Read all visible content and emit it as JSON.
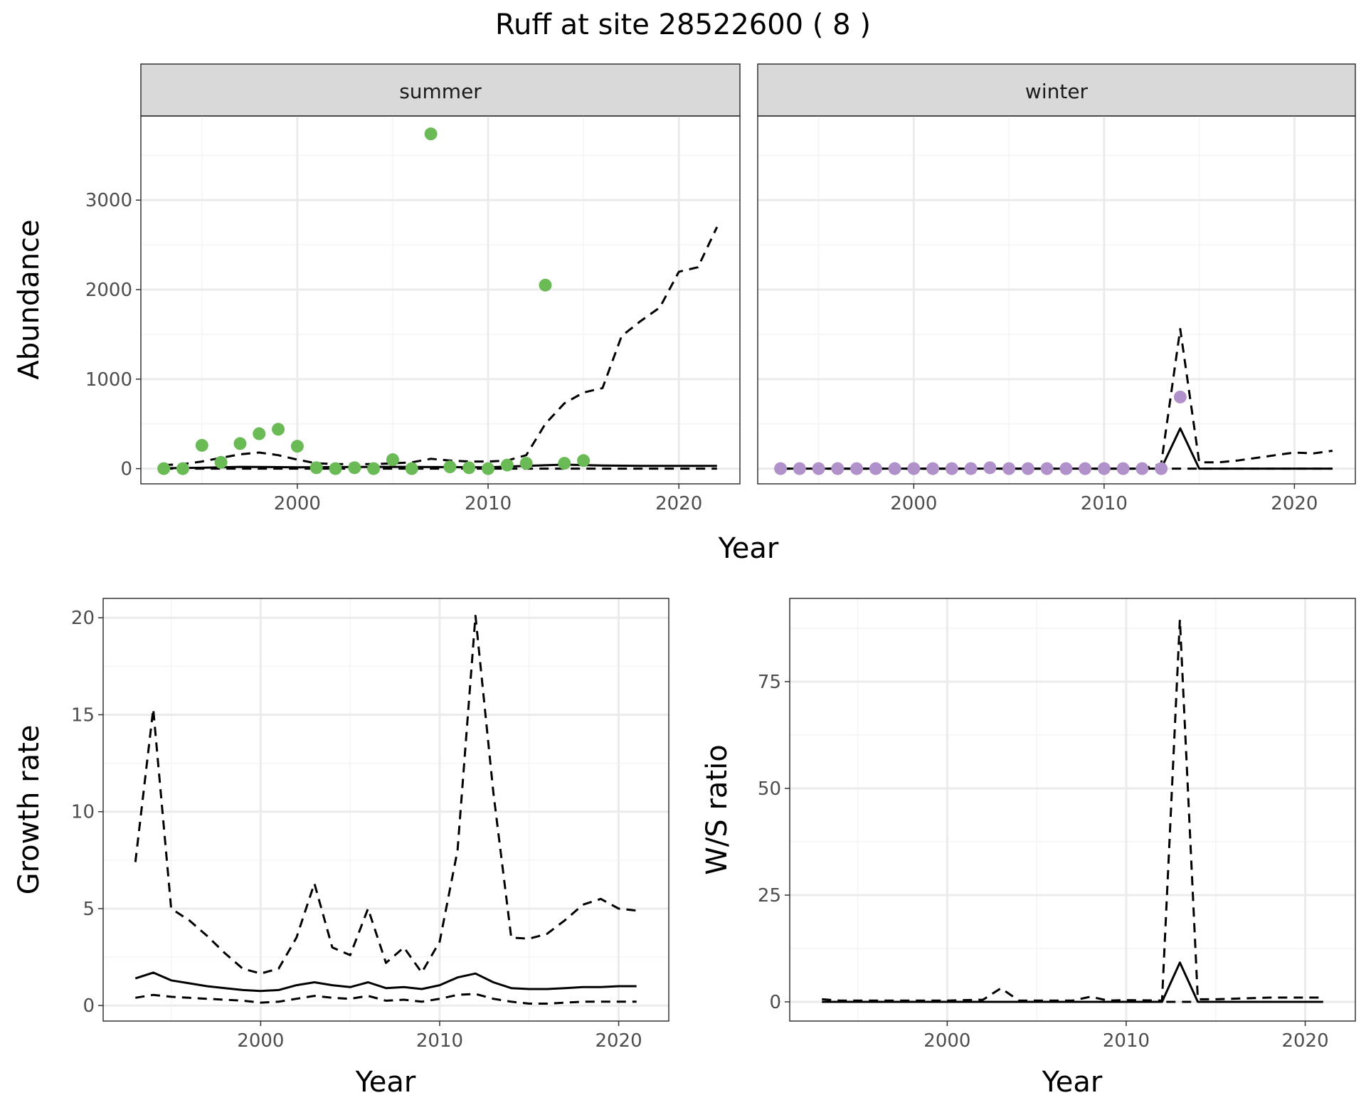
{
  "title": "Ruff at site 28522600 ( 8 )",
  "colors": {
    "summer": "#6abb56",
    "winter": "#b191c9",
    "line": "#000000",
    "strip_bg": "#d9d9d9",
    "grid_major": "#ebebeb",
    "grid_minor": "#f4f4f4"
  },
  "chart_data": [
    {
      "type": "scatter",
      "facet": "summer",
      "strip_label": "summer",
      "xlabel": "Year",
      "ylabel": "Abundance",
      "xlim": [
        1991.8,
        2023.2
      ],
      "ylim": [
        -170,
        3940
      ],
      "x_ticks": [
        2000,
        2010,
        2020
      ],
      "y_ticks": [
        0,
        1000,
        2000,
        3000
      ],
      "y_tick_labels": [
        "0",
        "1000",
        "2000",
        "3000"
      ],
      "points": {
        "x": [
          1993,
          1994,
          1995,
          1996,
          1997,
          1998,
          1999,
          2000,
          2001,
          2002,
          2003,
          2004,
          2005,
          2006,
          2007,
          2008,
          2009,
          2010,
          2011,
          2012,
          2013,
          2014,
          2015
        ],
        "y": [
          0,
          0,
          260,
          70,
          280,
          390,
          440,
          250,
          10,
          0,
          10,
          0,
          100,
          0,
          3740,
          20,
          10,
          0,
          40,
          60,
          2050,
          60,
          90
        ]
      },
      "series": [
        {
          "name": "estimate",
          "style": "solid",
          "x": [
            1993,
            1995,
            1997,
            2000,
            2005,
            2010,
            2012,
            2014,
            2016,
            2018,
            2020,
            2022
          ],
          "y": [
            5,
            10,
            20,
            15,
            20,
            15,
            30,
            45,
            35,
            30,
            30,
            30
          ]
        },
        {
          "name": "upper",
          "style": "dashed",
          "x": [
            1993,
            1994,
            1995,
            1996,
            1997,
            1998,
            1999,
            2000,
            2001,
            2002,
            2003,
            2004,
            2005,
            2006,
            2007,
            2008,
            2009,
            2010,
            2011,
            2012,
            2013,
            2014,
            2015,
            2016,
            2017,
            2018,
            2019,
            2020,
            2021,
            2022
          ],
          "y": [
            40,
            50,
            80,
            120,
            160,
            180,
            150,
            100,
            60,
            50,
            50,
            50,
            60,
            70,
            110,
            90,
            80,
            80,
            90,
            150,
            500,
            730,
            850,
            900,
            1480,
            1650,
            1800,
            2200,
            2250,
            2700
          ]
        },
        {
          "name": "lower",
          "style": "dashed",
          "x": [
            1993,
            2022
          ],
          "y": [
            0,
            0
          ]
        }
      ]
    },
    {
      "type": "scatter",
      "facet": "winter",
      "strip_label": "winter",
      "xlabel": "Year",
      "ylabel": "Abundance",
      "xlim": [
        1991.8,
        2023.2
      ],
      "ylim": [
        -170,
        3940
      ],
      "x_ticks": [
        2000,
        2010,
        2020
      ],
      "points": {
        "x": [
          1993,
          1994,
          1995,
          1996,
          1997,
          1998,
          1999,
          2000,
          2001,
          2002,
          2003,
          2004,
          2005,
          2006,
          2007,
          2008,
          2009,
          2010,
          2011,
          2012,
          2013,
          2014
        ],
        "y": [
          0,
          0,
          0,
          0,
          0,
          0,
          0,
          0,
          0,
          0,
          0,
          10,
          0,
          0,
          0,
          0,
          0,
          0,
          0,
          0,
          0,
          800
        ]
      },
      "series": [
        {
          "name": "estimate",
          "style": "solid",
          "x": [
            1993,
            2013,
            2014,
            2015,
            2022
          ],
          "y": [
            0,
            0,
            450,
            0,
            0
          ]
        },
        {
          "name": "upper",
          "style": "dashed",
          "x": [
            1993,
            2012,
            2013,
            2014,
            2015,
            2016,
            2017,
            2018,
            2019,
            2020,
            2021,
            2022
          ],
          "y": [
            0,
            0,
            50,
            1560,
            70,
            70,
            90,
            120,
            150,
            180,
            170,
            200
          ]
        },
        {
          "name": "lower",
          "style": "dashed",
          "x": [
            1993,
            2022
          ],
          "y": [
            0,
            0
          ]
        }
      ]
    },
    {
      "type": "line",
      "xlabel": "Year",
      "ylabel": "Growth rate",
      "xlim": [
        1991.2,
        2022.8
      ],
      "ylim": [
        -0.8,
        21.0
      ],
      "x_ticks": [
        2000,
        2010,
        2020
      ],
      "y_ticks": [
        0,
        5,
        10,
        15,
        20
      ],
      "y_tick_labels": [
        "0",
        "5",
        "10",
        "15",
        "20"
      ],
      "series": [
        {
          "name": "estimate",
          "style": "solid",
          "x": [
            1993,
            1994,
            1995,
            1996,
            1997,
            1998,
            1999,
            2000,
            2001,
            2002,
            2003,
            2004,
            2005,
            2006,
            2007,
            2008,
            2009,
            2010,
            2011,
            2012,
            2013,
            2014,
            2015,
            2016,
            2017,
            2018,
            2019,
            2020,
            2021
          ],
          "y": [
            1.4,
            1.7,
            1.3,
            1.15,
            1.0,
            0.9,
            0.8,
            0.75,
            0.8,
            1.05,
            1.2,
            1.05,
            0.95,
            1.2,
            0.9,
            0.95,
            0.85,
            1.05,
            1.45,
            1.65,
            1.2,
            0.9,
            0.85,
            0.85,
            0.9,
            0.95,
            0.95,
            1.0,
            1.0
          ]
        },
        {
          "name": "upper",
          "style": "dashed",
          "x": [
            1993,
            1994,
            1995,
            1996,
            1997,
            1998,
            1999,
            2000,
            2001,
            2002,
            2003,
            2004,
            2005,
            2006,
            2007,
            2008,
            2009,
            2010,
            2011,
            2012,
            2013,
            2014,
            2015,
            2016,
            2017,
            2018,
            2019,
            2020,
            2021
          ],
          "y": [
            7.4,
            15.3,
            5.0,
            4.4,
            3.6,
            2.7,
            1.9,
            1.65,
            1.9,
            3.5,
            6.3,
            3.0,
            2.6,
            5.0,
            2.2,
            3.0,
            1.7,
            3.3,
            8.0,
            20.1,
            11.0,
            3.5,
            3.45,
            3.7,
            4.4,
            5.2,
            5.5,
            5.0,
            4.9
          ]
        },
        {
          "name": "lower",
          "style": "dashed",
          "x": [
            1993,
            1994,
            1995,
            1996,
            1997,
            1998,
            1999,
            2000,
            2001,
            2002,
            2003,
            2004,
            2005,
            2006,
            2007,
            2008,
            2009,
            2010,
            2011,
            2012,
            2013,
            2014,
            2015,
            2016,
            2017,
            2018,
            2019,
            2020,
            2021
          ],
          "y": [
            0.4,
            0.55,
            0.45,
            0.4,
            0.35,
            0.3,
            0.25,
            0.15,
            0.2,
            0.35,
            0.5,
            0.4,
            0.35,
            0.5,
            0.25,
            0.3,
            0.2,
            0.35,
            0.55,
            0.6,
            0.35,
            0.2,
            0.1,
            0.1,
            0.15,
            0.2,
            0.2,
            0.2,
            0.2
          ]
        }
      ]
    },
    {
      "type": "line",
      "xlabel": "Year",
      "ylabel": "W/S ratio",
      "xlim": [
        1991.2,
        2022.8
      ],
      "ylim": [
        -4.5,
        94.5
      ],
      "x_ticks": [
        2000,
        2010,
        2020
      ],
      "y_ticks": [
        0,
        25,
        50,
        75
      ],
      "y_tick_labels": [
        "0",
        "25",
        "50",
        "75"
      ],
      "series": [
        {
          "name": "estimate",
          "style": "solid",
          "x": [
            1993,
            2012,
            2013,
            2014,
            2021
          ],
          "y": [
            0,
            0,
            9.2,
            0,
            0
          ]
        },
        {
          "name": "upper",
          "style": "dashed",
          "x": [
            1993,
            1994,
            2000,
            2002,
            2003,
            2004,
            2007,
            2008,
            2009,
            2010,
            2012,
            2013,
            2014,
            2015,
            2018,
            2021
          ],
          "y": [
            0.6,
            0.3,
            0.3,
            0.5,
            3.2,
            0.3,
            0.3,
            1.2,
            0.3,
            0.4,
            0.3,
            89.5,
            0.6,
            0.6,
            1.0,
            1.0
          ]
        },
        {
          "name": "lower",
          "style": "dashed",
          "x": [
            1993,
            2021
          ],
          "y": [
            0,
            0
          ]
        }
      ]
    }
  ]
}
